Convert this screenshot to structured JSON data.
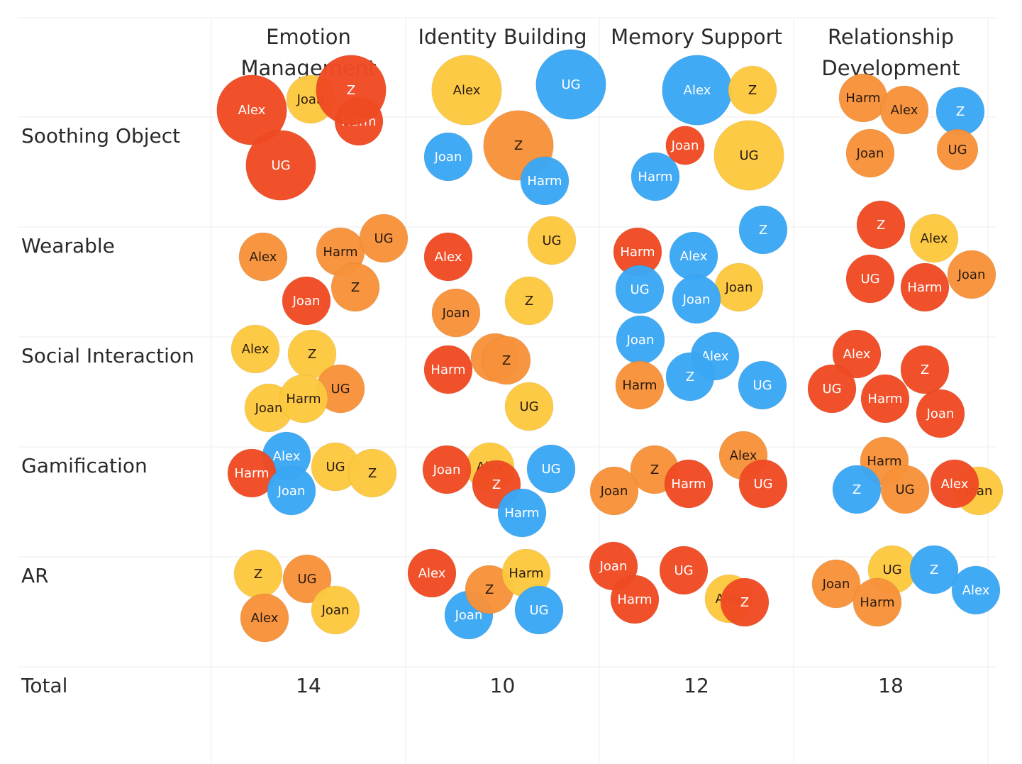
{
  "chart_data": {
    "type": "bubble-matrix",
    "columns": [
      {
        "lines": [
          "Emotion",
          "Management"
        ]
      },
      {
        "lines": [
          "Identity Building"
        ]
      },
      {
        "lines": [
          "Memory Support"
        ]
      },
      {
        "lines": [
          "Relationship",
          "Development"
        ]
      }
    ],
    "rows": [
      "Soothing Object",
      "Wearable",
      "Social Interaction",
      "Gamification",
      "AR"
    ],
    "total_label": "Total",
    "totals": [
      14,
      10,
      12,
      18
    ],
    "participants": {
      "Alex": "Alex",
      "Joan": "Joan",
      "Harm": "Harm",
      "UG": "UG",
      "Z": "Z"
    },
    "colors": {
      "red": "#f04a23",
      "orange": "#f7923a",
      "yellow": "#fcc83f",
      "blue": "#3aa7f5"
    },
    "cells": [
      [
        [
          {
            "name": "Alex",
            "color": "red",
            "size": 1.45
          },
          {
            "name": "Joan",
            "color": "yellow",
            "size": 1.0
          },
          {
            "name": "Harm",
            "color": "red",
            "size": 1.0
          },
          {
            "name": "Z",
            "color": "red",
            "size": 1.45
          },
          {
            "name": "UG",
            "color": "red",
            "size": 1.45
          }
        ],
        [
          {
            "name": "Alex",
            "color": "yellow",
            "size": 1.45
          },
          {
            "name": "UG",
            "color": "blue",
            "size": 1.45
          },
          {
            "name": "Joan",
            "color": "blue",
            "size": 1.0
          },
          {
            "name": "Z",
            "color": "orange",
            "size": 1.45
          },
          {
            "name": "Harm",
            "color": "blue",
            "size": 1.0
          }
        ],
        [
          {
            "name": "Alex",
            "color": "blue",
            "size": 1.45
          },
          {
            "name": "Z",
            "color": "yellow",
            "size": 1.0
          },
          {
            "name": "Joan",
            "color": "red",
            "size": 0.8
          },
          {
            "name": "UG",
            "color": "yellow",
            "size": 1.45
          },
          {
            "name": "Harm",
            "color": "blue",
            "size": 1.0
          }
        ],
        [
          {
            "name": "Harm",
            "color": "orange",
            "size": 1.0
          },
          {
            "name": "Alex",
            "color": "orange",
            "size": 1.0
          },
          {
            "name": "Z",
            "color": "blue",
            "size": 1.0
          },
          {
            "name": "Joan",
            "color": "orange",
            "size": 1.0
          },
          {
            "name": "UG",
            "color": "orange",
            "size": 0.85
          }
        ]
      ],
      [
        [
          {
            "name": "Alex",
            "color": "orange",
            "size": 1.0
          },
          {
            "name": "Harm",
            "color": "orange",
            "size": 1.0
          },
          {
            "name": "UG",
            "color": "orange",
            "size": 1.0
          },
          {
            "name": "Joan",
            "color": "red",
            "size": 1.0
          },
          {
            "name": "Z",
            "color": "orange",
            "size": 1.0
          }
        ],
        [
          {
            "name": "Alex",
            "color": "red",
            "size": 1.0
          },
          {
            "name": "UG",
            "color": "yellow",
            "size": 1.0
          },
          {
            "name": "Z",
            "color": "yellow",
            "size": 1.0
          },
          {
            "name": "Joan",
            "color": "orange",
            "size": 1.0
          }
        ],
        [
          {
            "name": "Harm",
            "color": "red",
            "size": 1.0
          },
          {
            "name": "Alex",
            "color": "blue",
            "size": 1.0
          },
          {
            "name": "Z",
            "color": "blue",
            "size": 1.0
          },
          {
            "name": "UG",
            "color": "blue",
            "size": 1.0
          },
          {
            "name": "Joan",
            "color": "yellow",
            "size": 1.0
          },
          {
            "name": "Joan",
            "color": "blue",
            "size": 1.0
          }
        ],
        [
          {
            "name": "Z",
            "color": "red",
            "size": 1.0
          },
          {
            "name": "Alex",
            "color": "yellow",
            "size": 1.0
          },
          {
            "name": "UG",
            "color": "red",
            "size": 1.0
          },
          {
            "name": "Harm",
            "color": "red",
            "size": 1.0
          },
          {
            "name": "Joan",
            "color": "orange",
            "size": 1.0
          }
        ]
      ],
      [
        [
          {
            "name": "Alex",
            "color": "yellow",
            "size": 1.0
          },
          {
            "name": "Z",
            "color": "yellow",
            "size": 1.0
          },
          {
            "name": "UG",
            "color": "orange",
            "size": 1.0
          },
          {
            "name": "Joan",
            "color": "yellow",
            "size": 1.0
          },
          {
            "name": "Harm",
            "color": "yellow",
            "size": 1.0
          }
        ],
        [
          {
            "name": "Harm",
            "color": "red",
            "size": 1.0
          },
          {
            "name": "",
            "color": "orange",
            "size": 1.0
          },
          {
            "name": "Z",
            "color": "orange",
            "size": 1.0
          },
          {
            "name": "UG",
            "color": "yellow",
            "size": 1.0
          }
        ],
        [
          {
            "name": "Joan",
            "color": "blue",
            "size": 1.0
          },
          {
            "name": "Alex",
            "color": "blue",
            "size": 1.0
          },
          {
            "name": "Harm",
            "color": "orange",
            "size": 1.0
          },
          {
            "name": "Z",
            "color": "blue",
            "size": 1.0
          },
          {
            "name": "UG",
            "color": "blue",
            "size": 1.0
          }
        ],
        [
          {
            "name": "Alex",
            "color": "red",
            "size": 1.0
          },
          {
            "name": "UG",
            "color": "red",
            "size": 1.0
          },
          {
            "name": "Z",
            "color": "red",
            "size": 1.0
          },
          {
            "name": "Harm",
            "color": "red",
            "size": 1.0
          },
          {
            "name": "Joan",
            "color": "red",
            "size": 1.0
          }
        ]
      ],
      [
        [
          {
            "name": "Alex",
            "color": "blue",
            "size": 1.0
          },
          {
            "name": "Harm",
            "color": "red",
            "size": 1.0
          },
          {
            "name": "Joan",
            "color": "blue",
            "size": 1.0
          },
          {
            "name": "UG",
            "color": "yellow",
            "size": 1.0
          },
          {
            "name": "Z",
            "color": "yellow",
            "size": 1.0
          }
        ],
        [
          {
            "name": "Alex",
            "color": "yellow",
            "size": 1.0
          },
          {
            "name": "Joan",
            "color": "red",
            "size": 1.0
          },
          {
            "name": "Z",
            "color": "red",
            "size": 1.0
          },
          {
            "name": "UG",
            "color": "blue",
            "size": 1.0
          },
          {
            "name": "Harm",
            "color": "blue",
            "size": 1.0
          }
        ],
        [
          {
            "name": "Z",
            "color": "orange",
            "size": 1.0
          },
          {
            "name": "Joan",
            "color": "orange",
            "size": 1.0
          },
          {
            "name": "Harm",
            "color": "red",
            "size": 1.0
          },
          {
            "name": "Alex",
            "color": "orange",
            "size": 1.0
          },
          {
            "name": "UG",
            "color": "red",
            "size": 1.0
          }
        ],
        [
          {
            "name": "Harm",
            "color": "orange",
            "size": 1.0
          },
          {
            "name": "Z",
            "color": "blue",
            "size": 1.0
          },
          {
            "name": "UG",
            "color": "orange",
            "size": 1.0
          },
          {
            "name": "Joan",
            "color": "yellow",
            "size": 1.0
          },
          {
            "name": "Alex",
            "color": "red",
            "size": 1.0
          }
        ]
      ],
      [
        [
          {
            "name": "Z",
            "color": "yellow",
            "size": 1.0
          },
          {
            "name": "UG",
            "color": "orange",
            "size": 1.0
          },
          {
            "name": "Alex",
            "color": "orange",
            "size": 1.0
          },
          {
            "name": "Joan",
            "color": "yellow",
            "size": 1.0
          }
        ],
        [
          {
            "name": "Alex",
            "color": "red",
            "size": 1.0
          },
          {
            "name": "Joan",
            "color": "blue",
            "size": 1.0
          },
          {
            "name": "Z",
            "color": "orange",
            "size": 1.0
          },
          {
            "name": "Harm",
            "color": "yellow",
            "size": 1.0
          },
          {
            "name": "UG",
            "color": "blue",
            "size": 1.0
          }
        ],
        [
          {
            "name": "Joan",
            "color": "red",
            "size": 1.0
          },
          {
            "name": "Harm",
            "color": "red",
            "size": 1.0
          },
          {
            "name": "UG",
            "color": "red",
            "size": 1.0
          },
          {
            "name": "Alex",
            "color": "yellow",
            "size": 1.0
          },
          {
            "name": "Z",
            "color": "red",
            "size": 1.0
          }
        ],
        [
          {
            "name": "Joan",
            "color": "orange",
            "size": 1.0
          },
          {
            "name": "UG",
            "color": "yellow",
            "size": 1.0
          },
          {
            "name": "Harm",
            "color": "orange",
            "size": 1.0
          },
          {
            "name": "Z",
            "color": "blue",
            "size": 1.0
          },
          {
            "name": "Alex",
            "color": "blue",
            "size": 1.0
          }
        ]
      ]
    ]
  }
}
